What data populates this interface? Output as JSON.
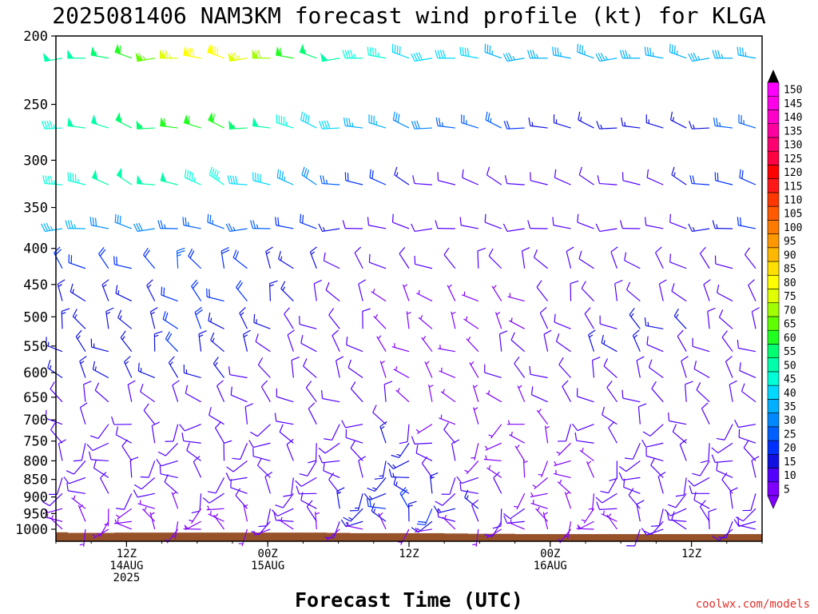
{
  "chart_data": {
    "type": "wind-barb-time-height",
    "title": "2025081406 NAM3KM forecast wind profile (kt) for KLGA",
    "xlabel": "Forecast Time (UTC)",
    "ylabel": "",
    "y_pressure_ticks": [
      "200",
      "250",
      "300",
      "350",
      "400",
      "450",
      "500",
      "550",
      "600",
      "650",
      "700",
      "750",
      "800",
      "850",
      "900",
      "950",
      "1000"
    ],
    "y_pressure_values": [
      200,
      250,
      300,
      350,
      400,
      450,
      500,
      550,
      600,
      650,
      700,
      750,
      800,
      850,
      900,
      950,
      1000
    ],
    "y_range_hpa": [
      200,
      1040
    ],
    "x_range_hours": [
      0,
      60
    ],
    "x_ticks": [
      {
        "hour": 6,
        "lines": [
          "12Z",
          "14AUG",
          "2025"
        ]
      },
      {
        "hour": 18,
        "lines": [
          "00Z",
          "15AUG"
        ]
      },
      {
        "hour": 30,
        "lines": [
          "12Z"
        ]
      },
      {
        "hour": 42,
        "lines": [
          "00Z",
          "16AUG"
        ]
      },
      {
        "hour": 54,
        "lines": [
          "12Z"
        ]
      }
    ],
    "colorbar": {
      "unit": "kt",
      "levels": [
        5,
        10,
        15,
        20,
        25,
        30,
        35,
        40,
        45,
        50,
        55,
        60,
        65,
        70,
        75,
        80,
        85,
        90,
        95,
        100,
        105,
        110,
        115,
        120,
        125,
        130,
        135,
        140,
        145,
        150
      ],
      "colors": [
        "#7f00ff",
        "#5200ff",
        "#1010e0",
        "#0030ff",
        "#0060ff",
        "#0088ff",
        "#00b0ff",
        "#00d8ff",
        "#00ffd8",
        "#00ffaa",
        "#00ff70",
        "#20ff20",
        "#60ff00",
        "#a0ff00",
        "#e0ff00",
        "#ffff00",
        "#ffe000",
        "#ffb800",
        "#ff9800",
        "#ff7a00",
        "#ff5a00",
        "#ff3800",
        "#ff1818",
        "#ff0000",
        "#ff0040",
        "#ff0070",
        "#ff00a0",
        "#ff00c8",
        "#ff00e8",
        "#ff00ff"
      ],
      "arrows": [
        "#000000",
        "#ff00ff"
      ]
    },
    "wind_rows": [
      {
        "p": 215,
        "spd": [
          50,
          50,
          55,
          60,
          65,
          75,
          80,
          80,
          75,
          70,
          60,
          55,
          50,
          45,
          45,
          40,
          40,
          40,
          40,
          35,
          35,
          35,
          35,
          35,
          35,
          35,
          35,
          35,
          35,
          35,
          35
        ]
      },
      {
        "p": 270,
        "spd": [
          45,
          50,
          50,
          55,
          55,
          60,
          60,
          60,
          55,
          50,
          45,
          40,
          40,
          35,
          35,
          30,
          30,
          25,
          25,
          25,
          20,
          15,
          15,
          15,
          15,
          15,
          15,
          15,
          15,
          25,
          25
        ]
      },
      {
        "p": 325,
        "spd": [
          45,
          45,
          50,
          50,
          50,
          50,
          45,
          45,
          40,
          40,
          35,
          30,
          25,
          20,
          20,
          15,
          10,
          10,
          10,
          10,
          10,
          10,
          10,
          10,
          10,
          10,
          10,
          15,
          20,
          20,
          20
        ]
      },
      {
        "p": 375,
        "spd": [
          35,
          35,
          30,
          30,
          30,
          25,
          25,
          25,
          25,
          25,
          20,
          20,
          15,
          10,
          10,
          10,
          10,
          10,
          10,
          10,
          10,
          10,
          10,
          10,
          10,
          10,
          10,
          10,
          15,
          15,
          20
        ]
      },
      {
        "p": 427,
        "spd": [
          20,
          20,
          20,
          20,
          20,
          25,
          20,
          20,
          20,
          15,
          15,
          15,
          10,
          10,
          10,
          10,
          10,
          10,
          10,
          10,
          10,
          10,
          10,
          10,
          10,
          10,
          10,
          10,
          10,
          10,
          10
        ]
      },
      {
        "p": 475,
        "spd": [
          15,
          15,
          15,
          15,
          15,
          20,
          20,
          20,
          20,
          15,
          15,
          10,
          10,
          10,
          5,
          5,
          5,
          5,
          5,
          5,
          5,
          10,
          10,
          10,
          10,
          10,
          10,
          10,
          10,
          10,
          10
        ]
      },
      {
        "p": 520,
        "spd": [
          15,
          15,
          15,
          15,
          15,
          20,
          20,
          15,
          15,
          15,
          10,
          10,
          10,
          10,
          5,
          5,
          5,
          5,
          5,
          5,
          5,
          10,
          10,
          10,
          10,
          15,
          15,
          15,
          10,
          10,
          10
        ]
      },
      {
        "p": 560,
        "spd": [
          15,
          15,
          15,
          15,
          15,
          20,
          15,
          15,
          15,
          10,
          10,
          10,
          10,
          10,
          5,
          5,
          5,
          5,
          5,
          10,
          10,
          10,
          10,
          15,
          15,
          15,
          10,
          10,
          10,
          10,
          10
        ]
      },
      {
        "p": 610,
        "spd": [
          15,
          15,
          15,
          15,
          15,
          15,
          15,
          15,
          10,
          10,
          10,
          10,
          10,
          10,
          5,
          5,
          5,
          5,
          5,
          10,
          10,
          10,
          10,
          10,
          10,
          10,
          10,
          10,
          10,
          10,
          10
        ]
      },
      {
        "p": 660,
        "spd": [
          10,
          10,
          10,
          10,
          10,
          10,
          10,
          10,
          10,
          10,
          10,
          10,
          10,
          10,
          10,
          5,
          5,
          5,
          5,
          5,
          5,
          10,
          10,
          10,
          10,
          10,
          10,
          10,
          10,
          10,
          10
        ]
      },
      {
        "p": 710,
        "spd": [
          10,
          10,
          10,
          10,
          10,
          10,
          10,
          10,
          10,
          10,
          10,
          10,
          10,
          10,
          10,
          10,
          5,
          5,
          5,
          5,
          5,
          5,
          10,
          10,
          10,
          10,
          10,
          10,
          10,
          10,
          10
        ]
      },
      {
        "p": 755,
        "spd": [
          10,
          10,
          10,
          10,
          10,
          10,
          10,
          10,
          10,
          10,
          10,
          10,
          10,
          10,
          15,
          15,
          10,
          10,
          5,
          5,
          5,
          5,
          5,
          10,
          10,
          10,
          10,
          10,
          10,
          10,
          10
        ]
      },
      {
        "p": 800,
        "spd": [
          10,
          10,
          10,
          10,
          10,
          10,
          10,
          10,
          10,
          10,
          10,
          10,
          10,
          10,
          15,
          15,
          10,
          10,
          5,
          5,
          5,
          5,
          5,
          5,
          10,
          10,
          10,
          10,
          10,
          10,
          10
        ]
      },
      {
        "p": 845,
        "spd": [
          10,
          10,
          10,
          10,
          10,
          10,
          10,
          10,
          10,
          10,
          10,
          10,
          10,
          10,
          15,
          15,
          10,
          10,
          10,
          5,
          5,
          5,
          5,
          5,
          10,
          10,
          10,
          10,
          10,
          10,
          10
        ]
      },
      {
        "p": 890,
        "spd": [
          10,
          10,
          10,
          10,
          10,
          10,
          10,
          10,
          10,
          10,
          10,
          10,
          10,
          15,
          15,
          15,
          15,
          10,
          10,
          10,
          5,
          5,
          5,
          5,
          10,
          10,
          10,
          10,
          10,
          10,
          10
        ]
      },
      {
        "p": 935,
        "spd": [
          5,
          5,
          5,
          5,
          5,
          5,
          5,
          5,
          10,
          10,
          10,
          10,
          15,
          15,
          20,
          20,
          20,
          15,
          15,
          10,
          10,
          5,
          5,
          5,
          10,
          10,
          10,
          10,
          10,
          10,
          10
        ]
      },
      {
        "p": 975,
        "spd": [
          5,
          5,
          5,
          5,
          5,
          5,
          5,
          5,
          5,
          10,
          10,
          10,
          10,
          15,
          15,
          15,
          15,
          10,
          10,
          10,
          10,
          5,
          5,
          5,
          5,
          10,
          10,
          10,
          10,
          10,
          10
        ]
      },
      {
        "p": 1000,
        "spd": [
          5,
          5,
          5,
          5,
          5,
          5,
          5,
          5,
          5,
          5,
          5,
          5,
          5,
          5,
          5,
          5,
          5,
          5,
          5,
          5,
          5,
          5,
          5,
          5,
          5,
          10,
          10,
          10,
          10,
          10,
          10
        ]
      }
    ],
    "terrain_surface_hpa": [
      1010,
      1012,
      1012,
      1011,
      1011,
      1011,
      1011,
      1011,
      1011,
      1011,
      1011,
      1011,
      1012,
      1013,
      1013,
      1013,
      1013,
      1014,
      1015,
      1015,
      1016,
      1016,
      1016,
      1016,
      1016,
      1016,
      1016,
      1016,
      1016,
      1016,
      1016
    ]
  },
  "credit": "coolwx.com/models",
  "colors": {
    "terrain": "#98522a",
    "frame": "#000000",
    "title": "#000000"
  }
}
